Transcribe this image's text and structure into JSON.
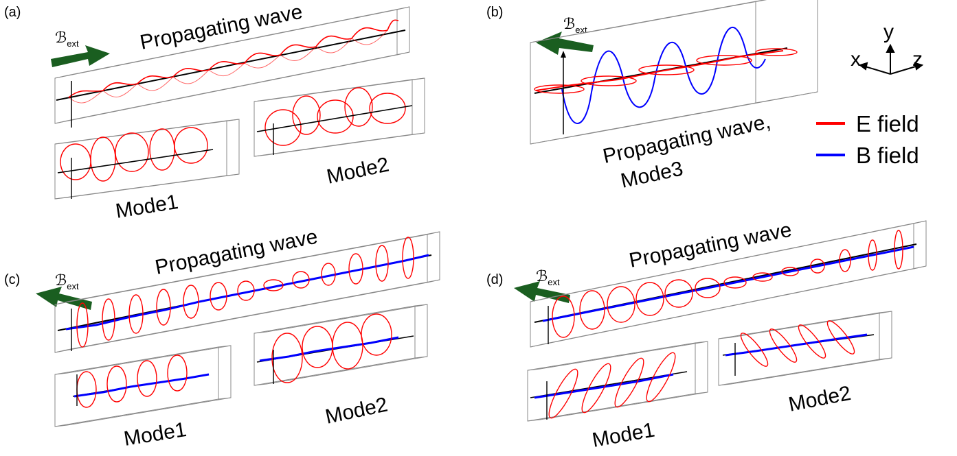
{
  "panels": {
    "a": {
      "label": "(a)",
      "field_label": "ℬ",
      "field_subscript": "ext",
      "main_caption": "Propagating wave",
      "mode1_caption": "Mode1",
      "mode2_caption": "Mode2"
    },
    "b": {
      "label": "(b)",
      "field_label": "ℬ",
      "field_subscript": "ext",
      "caption_line1": "Propagating wave,",
      "caption_line2": "Mode3"
    },
    "c": {
      "label": "(c)",
      "field_label": "ℬ",
      "field_subscript": "ext",
      "main_caption": "Propagating wave",
      "mode1_caption": "Mode1",
      "mode2_caption": "Mode2"
    },
    "d": {
      "label": "(d)",
      "field_label": "ℬ",
      "field_subscript": "ext",
      "main_caption": "Propagating wave",
      "mode1_caption": "Mode1",
      "mode2_caption": "Mode2"
    }
  },
  "axes": {
    "x": "x",
    "y": "y",
    "z": "z"
  },
  "legend": {
    "items": [
      {
        "label": "E field",
        "color": "#ff0000"
      },
      {
        "label": "B field",
        "color": "#0000ff"
      }
    ]
  },
  "colors": {
    "e_field": "#ff0000",
    "b_field": "#0000ff",
    "arrow": "#1a5e20",
    "box": "#888888"
  }
}
